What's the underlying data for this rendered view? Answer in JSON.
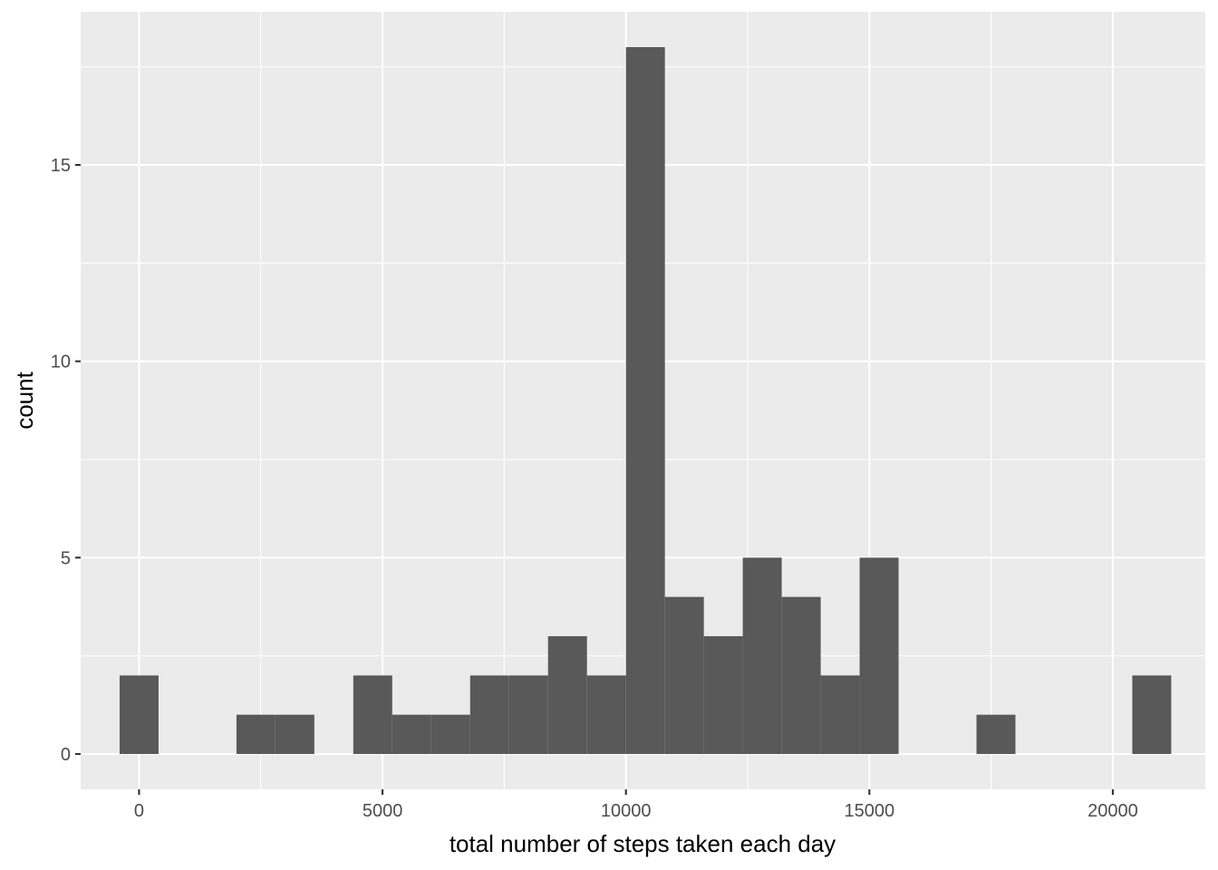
{
  "chart_data": {
    "type": "bar",
    "subtype": "histogram",
    "title": "",
    "xlabel": "total number of steps taken each day",
    "ylabel": "count",
    "xlim": [
      -1200,
      21900
    ],
    "ylim": [
      -0.9,
      18.9
    ],
    "xticks": [
      0,
      5000,
      10000,
      15000,
      20000
    ],
    "yticks": [
      0,
      5,
      10,
      15
    ],
    "grid": true,
    "colors": {
      "panel": "#ebebeb",
      "grid": "#ffffff",
      "bar": "#595959",
      "tick_label": "#4d4d4d"
    },
    "bins": [
      {
        "x0": -400,
        "x1": 400,
        "count": 2
      },
      {
        "x0": 400,
        "x1": 1200,
        "count": 0
      },
      {
        "x0": 1200,
        "x1": 2000,
        "count": 0
      },
      {
        "x0": 2000,
        "x1": 2800,
        "count": 1
      },
      {
        "x0": 2800,
        "x1": 3600,
        "count": 1
      },
      {
        "x0": 3600,
        "x1": 4400,
        "count": 0
      },
      {
        "x0": 4400,
        "x1": 5200,
        "count": 2
      },
      {
        "x0": 5200,
        "x1": 6000,
        "count": 1
      },
      {
        "x0": 6000,
        "x1": 6800,
        "count": 1
      },
      {
        "x0": 6800,
        "x1": 7600,
        "count": 2
      },
      {
        "x0": 7600,
        "x1": 8400,
        "count": 2
      },
      {
        "x0": 8400,
        "x1": 9200,
        "count": 3
      },
      {
        "x0": 9200,
        "x1": 10000,
        "count": 2
      },
      {
        "x0": 10000,
        "x1": 10800,
        "count": 18
      },
      {
        "x0": 10800,
        "x1": 11600,
        "count": 4
      },
      {
        "x0": 11600,
        "x1": 12400,
        "count": 3
      },
      {
        "x0": 12400,
        "x1": 13200,
        "count": 5
      },
      {
        "x0": 13200,
        "x1": 14000,
        "count": 4
      },
      {
        "x0": 14000,
        "x1": 14800,
        "count": 2
      },
      {
        "x0": 14800,
        "x1": 15600,
        "count": 5
      },
      {
        "x0": 15600,
        "x1": 16400,
        "count": 0
      },
      {
        "x0": 16400,
        "x1": 17200,
        "count": 0
      },
      {
        "x0": 17200,
        "x1": 18000,
        "count": 1
      },
      {
        "x0": 18000,
        "x1": 18800,
        "count": 0
      },
      {
        "x0": 18800,
        "x1": 19600,
        "count": 0
      },
      {
        "x0": 19600,
        "x1": 20400,
        "count": 0
      },
      {
        "x0": 20400,
        "x1": 21200,
        "count": 2
      }
    ]
  }
}
